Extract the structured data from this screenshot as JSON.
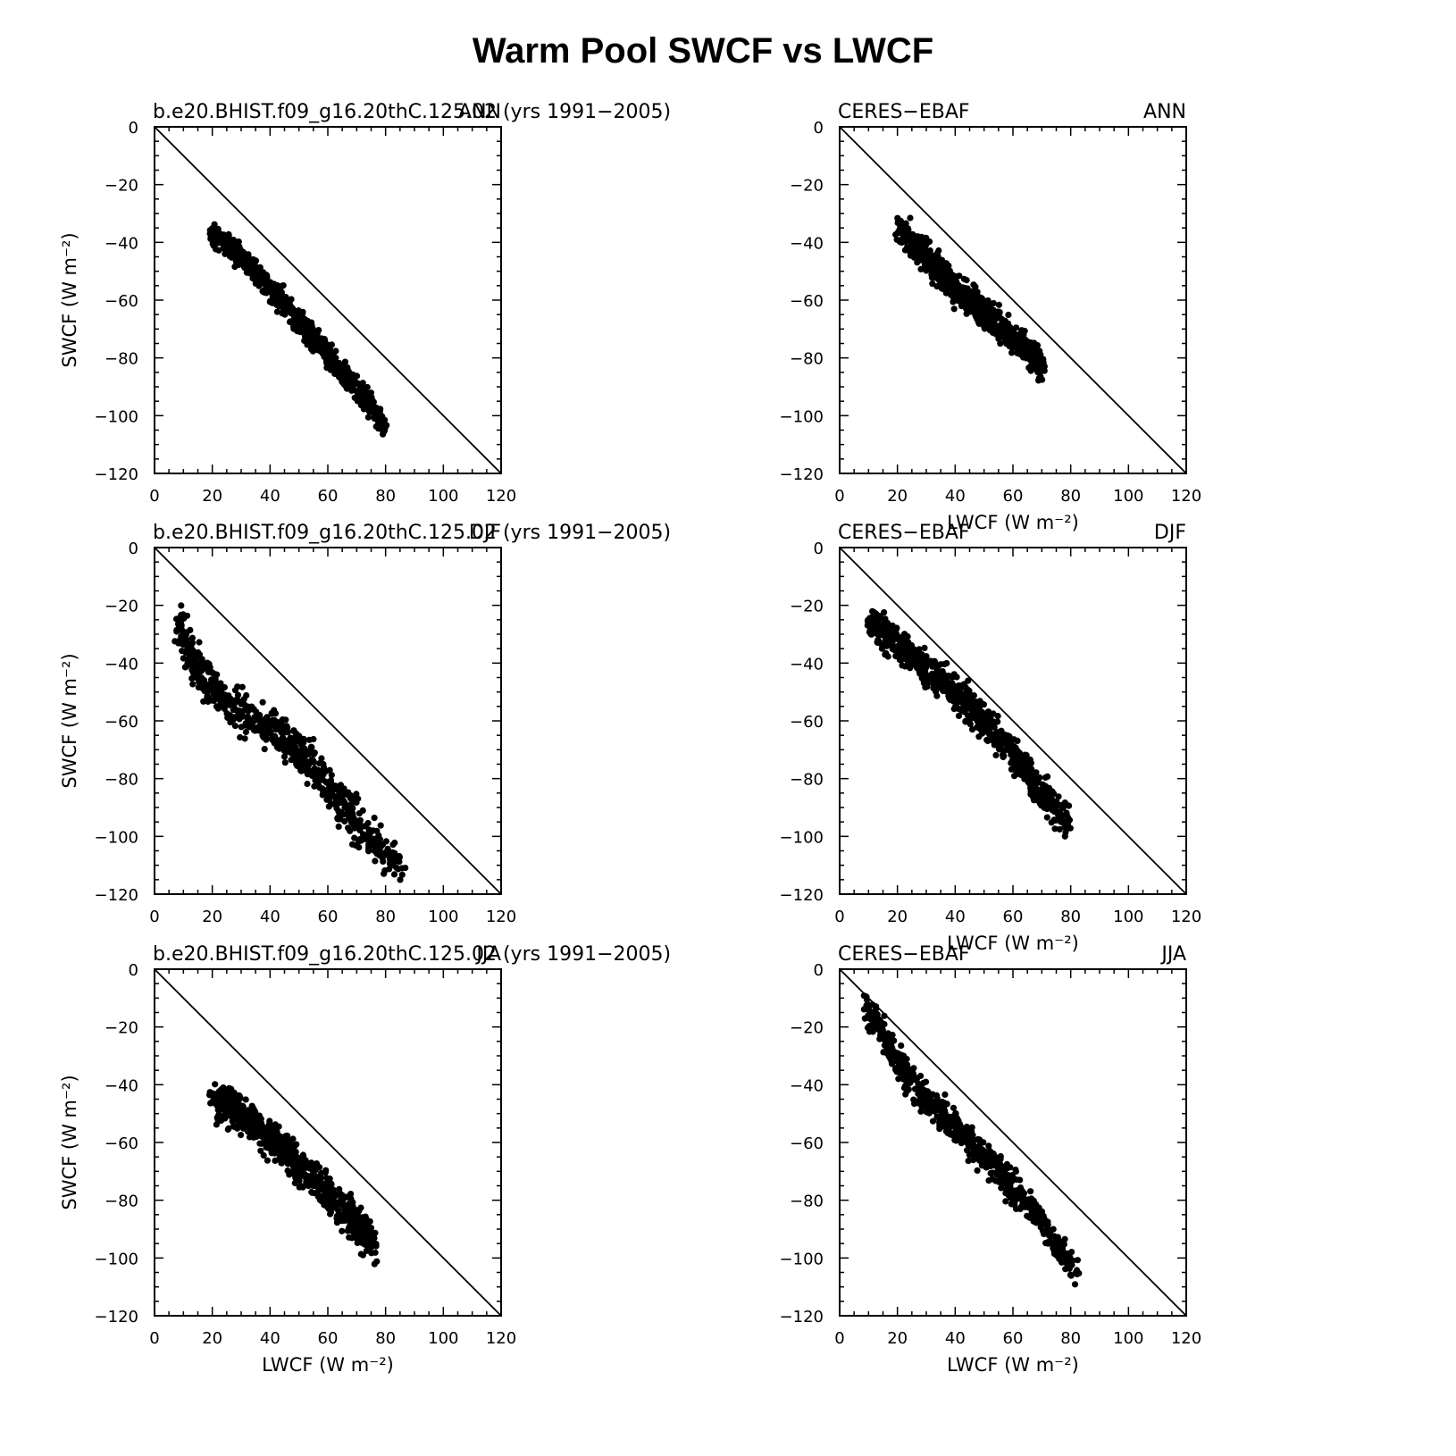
{
  "title": "Warm Pool SWCF vs LWCF",
  "chart_data": [
    {
      "type": "scatter",
      "left_title": "b.e20.BHIST.f09_g16.20thC.125.02 (yrs 1991−2005)",
      "right_title": "ANN",
      "xlabel": "",
      "ylabel": "SWCF (W m⁻²)",
      "xlim": [
        0,
        120
      ],
      "ylim": [
        -120,
        0
      ],
      "ticks": [
        "0",
        "20",
        "40",
        "60",
        "80",
        "100",
        "120"
      ],
      "yticks": [
        "0",
        "−20",
        "−40",
        "−60",
        "−80",
        "−100",
        "−120"
      ],
      "reference_line": "y = -x",
      "trend": [
        [
          20,
          -37
        ],
        [
          30,
          -45
        ],
        [
          40,
          -56
        ],
        [
          50,
          -67
        ],
        [
          60,
          -79
        ],
        [
          70,
          -91
        ],
        [
          80,
          -104
        ]
      ],
      "spread": 6
    },
    {
      "type": "scatter",
      "left_title": "CERES−EBAF",
      "right_title": "ANN",
      "xlabel": "LWCF (W m⁻²)",
      "ylabel": "",
      "xlim": [
        0,
        120
      ],
      "ylim": [
        -120,
        0
      ],
      "ticks": [
        "0",
        "20",
        "40",
        "60",
        "80",
        "100",
        "120"
      ],
      "yticks": [
        "0",
        "−20",
        "−40",
        "−60",
        "−80",
        "−100",
        "−120"
      ],
      "reference_line": "y = -x",
      "trend": [
        [
          20,
          -35
        ],
        [
          30,
          -45
        ],
        [
          40,
          -56
        ],
        [
          50,
          -64
        ],
        [
          60,
          -73
        ],
        [
          70,
          -82
        ]
      ],
      "spread": 8
    },
    {
      "type": "scatter",
      "left_title": "b.e20.BHIST.f09_g16.20thC.125.02 (yrs 1991−2005)",
      "right_title": "DJF",
      "xlabel": "",
      "ylabel": "SWCF (W m⁻²)",
      "xlim": [
        0,
        120
      ],
      "ylim": [
        -120,
        0
      ],
      "ticks": [
        "0",
        "20",
        "40",
        "60",
        "80",
        "100",
        "120"
      ],
      "yticks": [
        "0",
        "−20",
        "−40",
        "−60",
        "−80",
        "−100",
        "−120"
      ],
      "reference_line": "y = -x",
      "trend": [
        [
          8,
          -26
        ],
        [
          15,
          -42
        ],
        [
          25,
          -55
        ],
        [
          40,
          -62
        ],
        [
          50,
          -70
        ],
        [
          60,
          -82
        ],
        [
          70,
          -95
        ],
        [
          85,
          -110
        ]
      ],
      "spread": 11
    },
    {
      "type": "scatter",
      "left_title": "CERES−EBAF",
      "right_title": "DJF",
      "xlabel": "LWCF (W m⁻²)",
      "ylabel": "",
      "xlim": [
        0,
        120
      ],
      "ylim": [
        -120,
        0
      ],
      "ticks": [
        "0",
        "20",
        "40",
        "60",
        "80",
        "100",
        "120"
      ],
      "yticks": [
        "0",
        "−20",
        "−40",
        "−60",
        "−80",
        "−100",
        "−120"
      ],
      "reference_line": "y = -x",
      "trend": [
        [
          10,
          -25
        ],
        [
          20,
          -33
        ],
        [
          30,
          -42
        ],
        [
          40,
          -50
        ],
        [
          50,
          -60
        ],
        [
          60,
          -72
        ],
        [
          70,
          -85
        ],
        [
          80,
          -95
        ]
      ],
      "spread": 9
    },
    {
      "type": "scatter",
      "left_title": "b.e20.BHIST.f09_g16.20thC.125.02 (yrs 1991−2005)",
      "right_title": "JJA",
      "xlabel": "LWCF (W m⁻²)",
      "ylabel": "SWCF (W m⁻²)",
      "xlim": [
        0,
        120
      ],
      "ylim": [
        -120,
        0
      ],
      "ticks": [
        "0",
        "20",
        "40",
        "60",
        "80",
        "100",
        "120"
      ],
      "yticks": [
        "0",
        "−20",
        "−40",
        "−60",
        "−80",
        "−100",
        "−120"
      ],
      "reference_line": "y = -x",
      "trend": [
        [
          20,
          -45
        ],
        [
          30,
          -50
        ],
        [
          40,
          -58
        ],
        [
          50,
          -68
        ],
        [
          60,
          -78
        ],
        [
          70,
          -88
        ],
        [
          76,
          -95
        ]
      ],
      "spread": 10
    },
    {
      "type": "scatter",
      "left_title": "CERES−EBAF",
      "right_title": "JJA",
      "xlabel": "LWCF (W m⁻²)",
      "ylabel": "",
      "xlim": [
        0,
        120
      ],
      "ylim": [
        -120,
        0
      ],
      "ticks": [
        "0",
        "20",
        "40",
        "60",
        "80",
        "100",
        "120"
      ],
      "yticks": [
        "0",
        "−20",
        "−40",
        "−60",
        "−80",
        "−100",
        "−120"
      ],
      "reference_line": "y = -x",
      "trend": [
        [
          9,
          -12
        ],
        [
          20,
          -32
        ],
        [
          30,
          -45
        ],
        [
          40,
          -55
        ],
        [
          50,
          -65
        ],
        [
          60,
          -75
        ],
        [
          70,
          -88
        ],
        [
          82,
          -105
        ]
      ],
      "spread": 8
    }
  ]
}
